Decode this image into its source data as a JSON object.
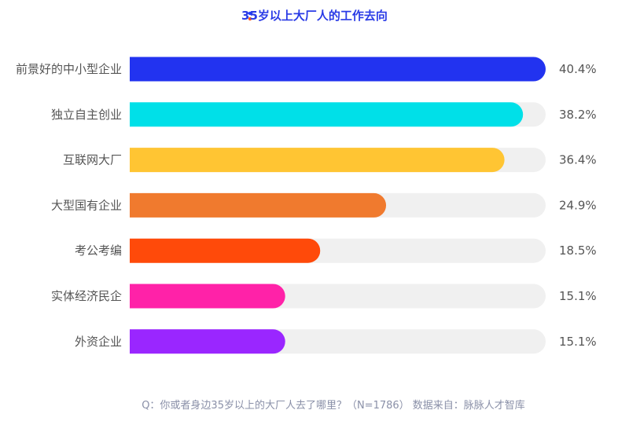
{
  "chart_data": {
    "type": "bar",
    "orientation": "horizontal",
    "title": "35岁以上大厂人的工作去向",
    "categories": [
      "前景好的中小型企业",
      "独立自主创业",
      "互联网大厂",
      "大型国有企业",
      "考公考编",
      "实体经济民企",
      "外资企业"
    ],
    "values": [
      40.4,
      38.2,
      36.4,
      24.9,
      18.5,
      15.1,
      15.1
    ],
    "value_labels": [
      "40.4%",
      "38.2%",
      "36.4%",
      "24.9%",
      "18.5%",
      "15.1%",
      "15.1%"
    ],
    "xlim": [
      0,
      40.4
    ],
    "grid": false,
    "legend": "none",
    "note": "Q：你或者身边35岁以上的大厂人去了哪里？（N=1786）   数据来自：脉脉人才智库"
  },
  "colors": {
    "bars": [
      "#2233f0",
      "#00e0e8",
      "#ffc533",
      "#f07a2e",
      "#ff4a0a",
      "#ff22a8",
      "#9a26ff"
    ],
    "track": "#f0f0f0",
    "title": "#2a3be6",
    "title_dot_top": "#1f3bff",
    "title_dot_bottom": "#ff5a1f",
    "text": "#555555",
    "footnote": "#8a90a8"
  }
}
